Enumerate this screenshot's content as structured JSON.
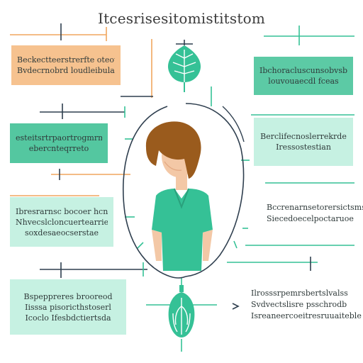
{
  "title": "Itcesrisesitomistitstom",
  "colors": {
    "teal": "#35c196",
    "teal_light": "#c6f1e2",
    "orange": "#f6c28f",
    "orange_line": "#f0a65e",
    "navy": "#2f3f4f",
    "hair": "#9a5b1d",
    "skin": "#f3c8a6"
  },
  "boxes": {
    "b1": [
      "Beckectteerstrerfte oteotseta",
      "Bvdecrnobrd loudleibulaa"
    ],
    "b2": [
      "Ibchoracluscunsobvsbc",
      "louvouaecdl fceas"
    ],
    "b3": [
      "esteitsrtrpaortrogmrms",
      "ebercnteqrreto"
    ],
    "b4": [
      "Berclifecnoslerrekrde",
      "Iressostestian"
    ],
    "b5": [
      "Ibresrarnsc bocoer hcnne",
      "Nhvecslcloncuertearrie",
      "soxdesaeocserstae"
    ],
    "b6": [
      "Bccrenarnsetorersictsms",
      "Siecedoecelpoctaruoe"
    ],
    "b7": [
      "Bspeppreres brooreod",
      "Iisssa pisoricthstoserl",
      "Icoclo Ifesbdctiertsda"
    ],
    "b8": [
      "Ilrosssrpemrsbertslvalss",
      "Svdvectslisre psschrodb",
      "Isreaneercoeitresruuaiteble"
    ]
  },
  "icons": {
    "leaf": "leaf-icon",
    "person": "person-illustration",
    "lungs": "lungs-icon",
    "arrow": "arrow-right-icon"
  }
}
